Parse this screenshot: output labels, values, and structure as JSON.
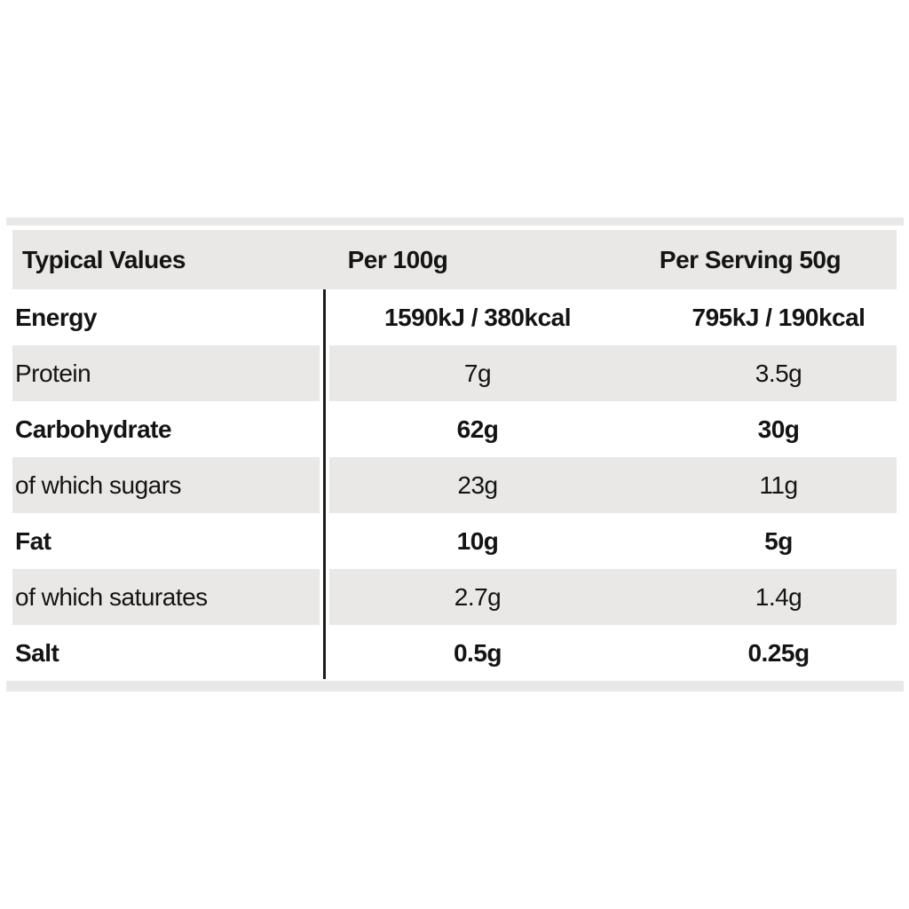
{
  "table": {
    "columns": [
      "Typical Values",
      "Per 100g",
      "Per Serving 50g"
    ],
    "rows": [
      {
        "label": "Energy",
        "per_100g": "1590kJ / 380kcal",
        "per_serving": "795kJ / 190kcal",
        "bold": true
      },
      {
        "label": "Protein",
        "per_100g": "7g",
        "per_serving": "3.5g",
        "bold": false
      },
      {
        "label": "Carbohydrate",
        "per_100g": "62g",
        "per_serving": "30g",
        "bold": true
      },
      {
        "label": "of which sugars",
        "per_100g": "23g",
        "per_serving": "11g",
        "bold": false
      },
      {
        "label": "Fat",
        "per_100g": "10g",
        "per_serving": "5g",
        "bold": true
      },
      {
        "label": "of which saturates",
        "per_100g": "2.7g",
        "per_serving": "1.4g",
        "bold": false
      },
      {
        "label": "Salt",
        "per_100g": "0.5g",
        "per_serving": "0.25g",
        "bold": true
      }
    ],
    "colors": {
      "row_alternate": "#e9e8e6",
      "divider_line": "#1c1c1c",
      "text": "#141414",
      "background": "#ffffff"
    }
  }
}
